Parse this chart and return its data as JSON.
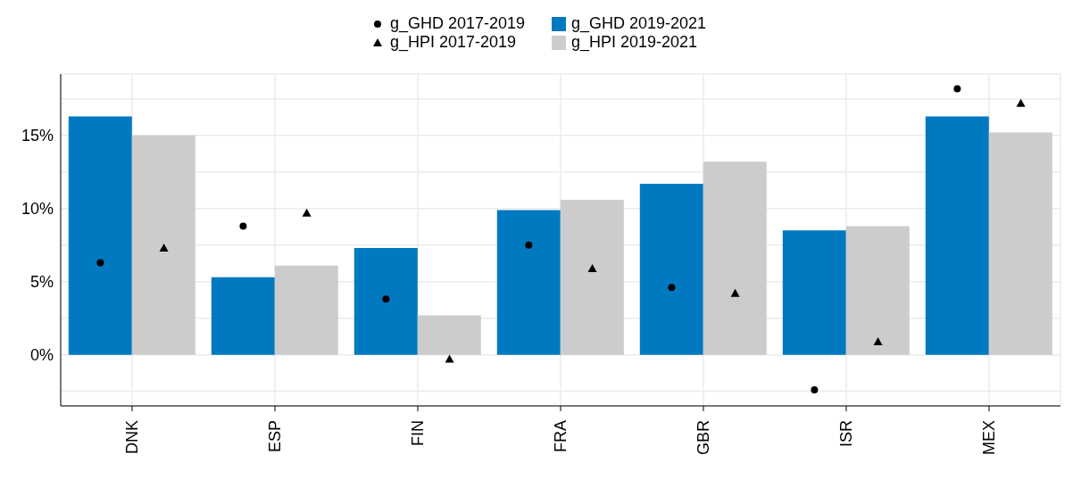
{
  "chart_data": {
    "type": "bar",
    "categories": [
      "DNK",
      "ESP",
      "FIN",
      "FRA",
      "GBR",
      "ISR",
      "MEX"
    ],
    "series": [
      {
        "name": "g_GHD 2017-2019",
        "type": "scatter",
        "marker": "circle",
        "color": "#000000",
        "values": [
          6.3,
          8.8,
          3.8,
          7.5,
          4.6,
          -2.4,
          18.2
        ]
      },
      {
        "name": "g_HPI 2017-2019",
        "type": "scatter",
        "marker": "triangle",
        "color": "#000000",
        "values": [
          7.3,
          9.7,
          -0.3,
          5.9,
          4.2,
          0.9,
          17.2
        ]
      },
      {
        "name": "g_GHD 2019-2021",
        "type": "bar",
        "color": "#0079c1",
        "values": [
          16.3,
          5.3,
          7.3,
          9.9,
          11.7,
          8.5,
          16.3
        ]
      },
      {
        "name": "g_HPI 2019-2021",
        "type": "bar",
        "color": "#cccccc",
        "values": [
          15.0,
          6.1,
          2.7,
          10.6,
          13.2,
          8.8,
          15.2
        ]
      }
    ],
    "ylim": [
      -3.5,
      19.2
    ],
    "yticks": [
      {
        "value": -2.5,
        "label": null
      },
      {
        "value": 0,
        "label": "0%"
      },
      {
        "value": 2.5,
        "label": null
      },
      {
        "value": 5,
        "label": "5%"
      },
      {
        "value": 7.5,
        "label": null
      },
      {
        "value": 10,
        "label": "10%"
      },
      {
        "value": 12.5,
        "label": null
      },
      {
        "value": 15,
        "label": "15%"
      },
      {
        "value": 17.5,
        "label": null
      }
    ],
    "grid": true,
    "legend": "top"
  }
}
